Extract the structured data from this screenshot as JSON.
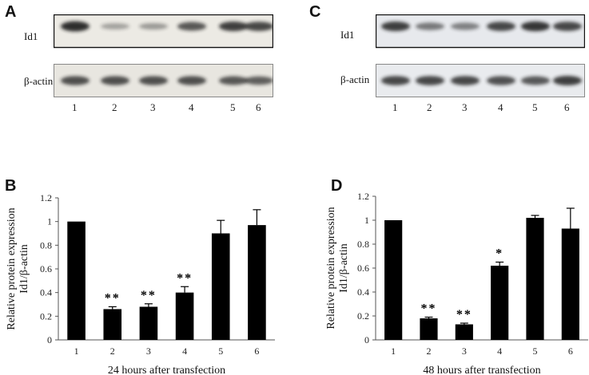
{
  "panels": {
    "A": {
      "label": "A",
      "rows": [
        {
          "name": "Id1",
          "intensity": [
            0.95,
            0.25,
            0.3,
            0.7,
            0.85,
            0.8
          ]
        },
        {
          "name": "β-actin",
          "intensity": [
            0.75,
            0.75,
            0.75,
            0.75,
            0.7,
            0.65
          ]
        }
      ],
      "lanes": [
        "1",
        "2",
        "3",
        "4",
        "5",
        "6"
      ]
    },
    "C": {
      "label": "C",
      "rows": [
        {
          "name": "Id1",
          "intensity": [
            0.85,
            0.5,
            0.45,
            0.8,
            0.9,
            0.8
          ]
        },
        {
          "name": "β-actin",
          "intensity": [
            0.8,
            0.8,
            0.8,
            0.75,
            0.7,
            0.85
          ]
        }
      ],
      "lanes": [
        "1",
        "2",
        "3",
        "4",
        "5",
        "6"
      ]
    },
    "B": {
      "label": "B"
    },
    "D": {
      "label": "D"
    }
  },
  "chart_data": [
    {
      "panel": "B",
      "type": "bar",
      "categories": [
        "1",
        "2",
        "3",
        "4",
        "5",
        "6"
      ],
      "values": [
        1.0,
        0.26,
        0.28,
        0.4,
        0.9,
        0.97
      ],
      "errors": [
        0,
        0.02,
        0.025,
        0.05,
        0.11,
        0.13
      ],
      "significance": [
        "",
        "**",
        "**",
        "**",
        "",
        ""
      ],
      "xlabel": "24 hours after transfection",
      "ylabel": "Relative protein expression",
      "ylabel2": "Id1/β-actin",
      "ylim": [
        0,
        1.2
      ],
      "yticks": [
        "0",
        "0.2",
        "0.4",
        "0.6",
        "0.8",
        "1",
        "1.2"
      ],
      "grid": false
    },
    {
      "panel": "D",
      "type": "bar",
      "categories": [
        "1",
        "2",
        "3",
        "4",
        "5",
        "6"
      ],
      "values": [
        1.0,
        0.18,
        0.13,
        0.62,
        1.02,
        0.93
      ],
      "errors": [
        0,
        0.01,
        0.01,
        0.03,
        0.02,
        0.17
      ],
      "significance": [
        "",
        "**",
        "**",
        "*",
        "",
        ""
      ],
      "xlabel": "48 hours after transfection",
      "ylabel": "Relative protein expression",
      "ylabel2": "Id1/β-actin",
      "ylim": [
        0,
        1.2
      ],
      "yticks": [
        "0",
        "0.2",
        "0.4",
        "0.6",
        "0.8",
        "1",
        "1.2"
      ],
      "grid": false
    }
  ]
}
